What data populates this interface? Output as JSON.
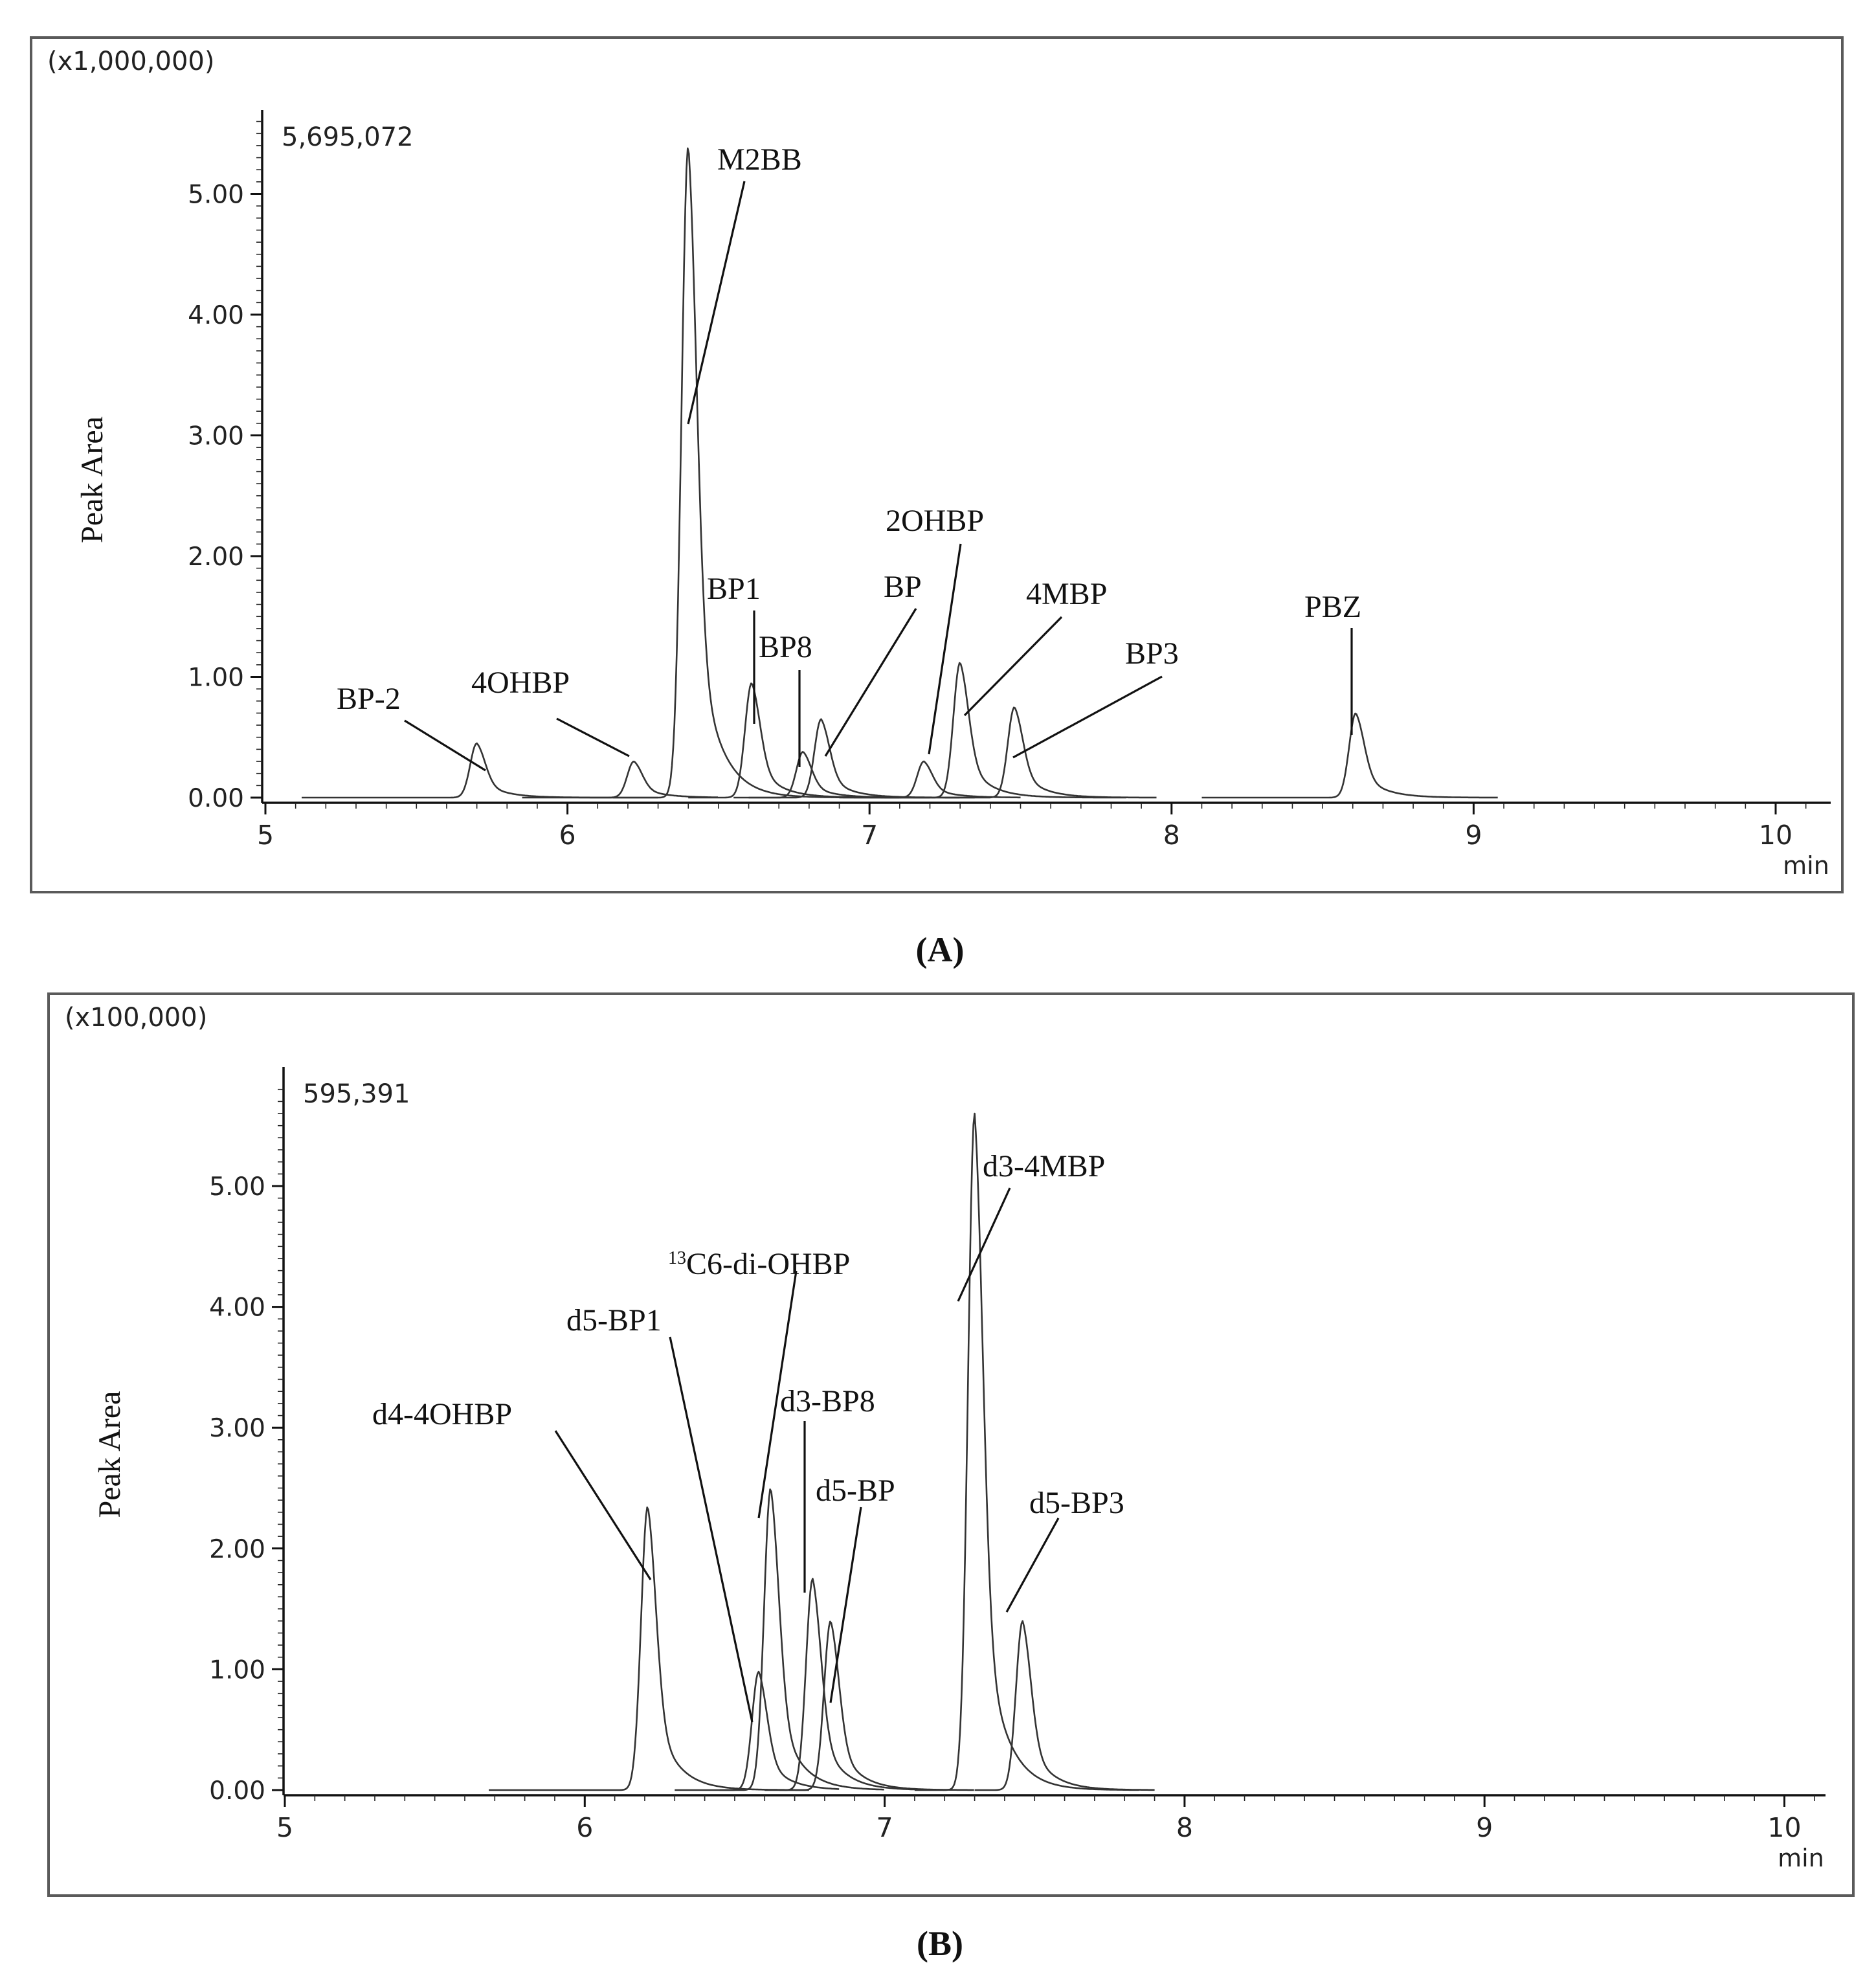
{
  "chart_data": [
    {
      "panel": "A",
      "caption": "(A)",
      "type": "line",
      "scale_label": "(x1,000,000)",
      "max_label": "5,695,072",
      "xlabel": "min",
      "ylabel": "Peak Area",
      "xlim": [
        5,
        10.2
      ],
      "ylim": [
        0,
        5.85
      ],
      "grid": false,
      "x_ticks": [
        "5",
        "6",
        "7",
        "8",
        "9",
        "10"
      ],
      "y_ticks": [
        "0.00",
        "1.00",
        "2.00",
        "3.00",
        "4.00",
        "5.00"
      ],
      "series": [
        {
          "label": "BP-2",
          "rt": 5.7,
          "height": 0.45,
          "window": [
            5.12,
            6.3
          ]
        },
        {
          "label": "4OHBP",
          "rt": 6.22,
          "height": 0.3,
          "window": [
            5.85,
            6.5
          ]
        },
        {
          "label": "M2BB",
          "rt": 6.4,
          "height": 5.4,
          "window": [
            6.15,
            7.1
          ]
        },
        {
          "label": "BP1",
          "rt": 6.61,
          "height": 0.95,
          "window": [
            6.4,
            7.2
          ]
        },
        {
          "label": "BP8",
          "rt": 6.78,
          "height": 0.38,
          "window": [
            6.55,
            7.3
          ]
        },
        {
          "label": "BP",
          "rt": 6.84,
          "height": 0.65,
          "window": [
            6.6,
            7.35
          ]
        },
        {
          "label": "2OHBP",
          "rt": 7.18,
          "height": 0.3,
          "window": [
            6.9,
            7.5
          ]
        },
        {
          "label": "4MBP",
          "rt": 7.3,
          "height": 1.12,
          "window": [
            7.05,
            7.85
          ]
        },
        {
          "label": "BP3",
          "rt": 7.48,
          "height": 0.75,
          "window": [
            7.25,
            7.95
          ]
        },
        {
          "label": "PBZ",
          "rt": 8.61,
          "height": 0.7,
          "window": [
            8.1,
            9.08
          ]
        }
      ]
    },
    {
      "panel": "B",
      "caption": "(B)",
      "type": "line",
      "scale_label": "(x100,000)",
      "max_label": "595,391",
      "xlabel": "min",
      "ylabel": "Peak Area",
      "xlim": [
        5,
        10.2
      ],
      "ylim": [
        0,
        5.85
      ],
      "grid": false,
      "x_ticks": [
        "5",
        "6",
        "7",
        "8",
        "9",
        "10"
      ],
      "y_ticks": [
        "0.00",
        "1.00",
        "2.00",
        "3.00",
        "4.00",
        "5.00"
      ],
      "series": [
        {
          "label": "d4-4OHBP",
          "rt": 6.21,
          "height": 2.35,
          "window": [
            5.68,
            6.75
          ]
        },
        {
          "label": "d5-BP1",
          "rt": 6.58,
          "height": 0.98,
          "window": [
            6.3,
            6.85
          ]
        },
        {
          "label": "13C6-di-OHBP",
          "label_prefix": "13",
          "label_main": "C6-di-OHBP",
          "rt": 6.62,
          "height": 2.5,
          "window": [
            6.45,
            7.0
          ]
        },
        {
          "label": "d3-BP8",
          "rt": 6.76,
          "height": 1.75,
          "window": [
            6.6,
            7.2
          ]
        },
        {
          "label": "d5-BP",
          "rt": 6.82,
          "height": 1.4,
          "window": [
            6.65,
            7.3
          ]
        },
        {
          "label": "d3-4MBP",
          "rt": 7.3,
          "height": 5.6,
          "window": [
            7.1,
            7.85
          ]
        },
        {
          "label": "d5-BP3",
          "rt": 7.46,
          "height": 1.4,
          "window": [
            7.3,
            7.9
          ]
        }
      ]
    }
  ]
}
